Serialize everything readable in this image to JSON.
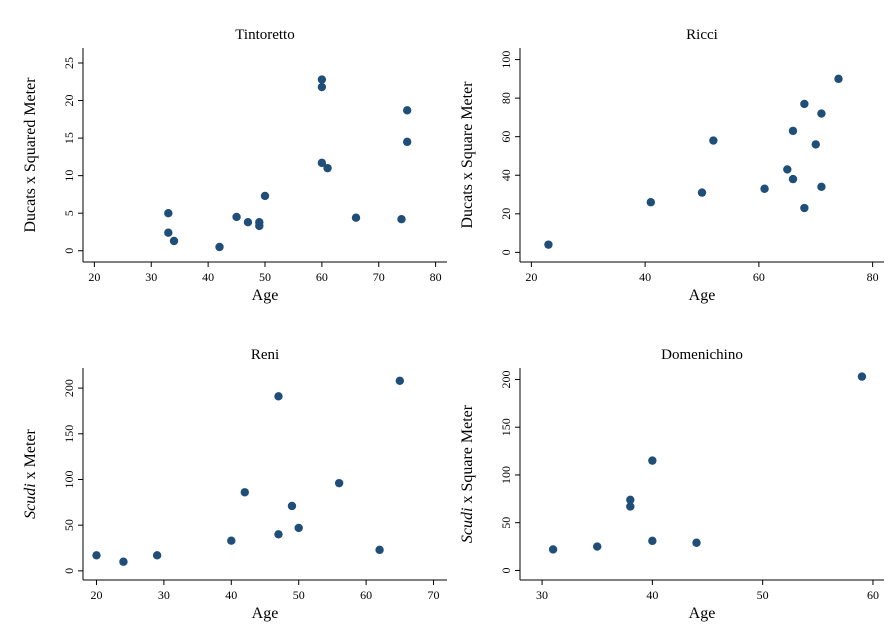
{
  "chart_data": [
    {
      "type": "scatter",
      "title": "Tintoretto",
      "xlabel": "Age",
      "ylabel": "Ducats x Squared Meter",
      "xlim": [
        18,
        82
      ],
      "ylim": [
        -1.5,
        27
      ],
      "xticks": [
        20,
        30,
        40,
        50,
        60,
        70,
        80
      ],
      "yticks": [
        0,
        5,
        10,
        15,
        20,
        25
      ],
      "x": [
        33,
        33,
        34,
        42,
        45,
        47,
        49,
        49,
        50,
        60,
        60,
        60,
        61,
        66,
        74,
        75,
        75
      ],
      "y": [
        5.0,
        2.4,
        1.3,
        0.5,
        4.5,
        3.8,
        3.8,
        3.3,
        7.3,
        22.8,
        21.8,
        11.7,
        11.0,
        4.4,
        4.2,
        18.7,
        14.5
      ]
    },
    {
      "type": "scatter",
      "title": "Ricci",
      "xlabel": "Age",
      "ylabel": "Ducats x Square Meter",
      "xlim": [
        18,
        82
      ],
      "ylim": [
        -5,
        106
      ],
      "xticks": [
        20,
        40,
        60,
        80
      ],
      "yticks": [
        0,
        20,
        40,
        60,
        80,
        100
      ],
      "x": [
        23,
        41,
        50,
        52,
        61,
        65,
        66,
        66,
        68,
        68,
        70,
        71,
        71,
        74
      ],
      "y": [
        4,
        26,
        31,
        58,
        33,
        43,
        38,
        63,
        23,
        77,
        56,
        72,
        34,
        90
      ]
    },
    {
      "type": "scatter",
      "title": "Reni",
      "xlabel": "Age",
      "ylabel_italic": "Scudi",
      "ylabel_rest": " x Meter",
      "xlim": [
        18,
        72
      ],
      "ylim": [
        -10,
        222
      ],
      "xticks": [
        20,
        30,
        40,
        50,
        60,
        70
      ],
      "yticks": [
        0,
        50,
        100,
        150,
        200
      ],
      "x": [
        20,
        24,
        29,
        40,
        42,
        47,
        47,
        49,
        50,
        56,
        62,
        65
      ],
      "y": [
        17,
        10,
        17,
        33,
        86,
        40,
        191,
        71,
        47,
        96,
        23,
        208
      ]
    },
    {
      "type": "scatter",
      "title": "Domenichino",
      "xlabel": "Age",
      "ylabel_italic": "Scudi",
      "ylabel_rest": " x Square Meter",
      "xlim": [
        28,
        61
      ],
      "ylim": [
        -10,
        212
      ],
      "xticks": [
        30,
        40,
        50,
        60
      ],
      "yticks": [
        0,
        50,
        100,
        150,
        200
      ],
      "x": [
        31,
        35,
        38,
        38,
        40,
        40,
        44,
        59
      ],
      "y": [
        22,
        25,
        74,
        67,
        115,
        31,
        29,
        203
      ]
    }
  ]
}
